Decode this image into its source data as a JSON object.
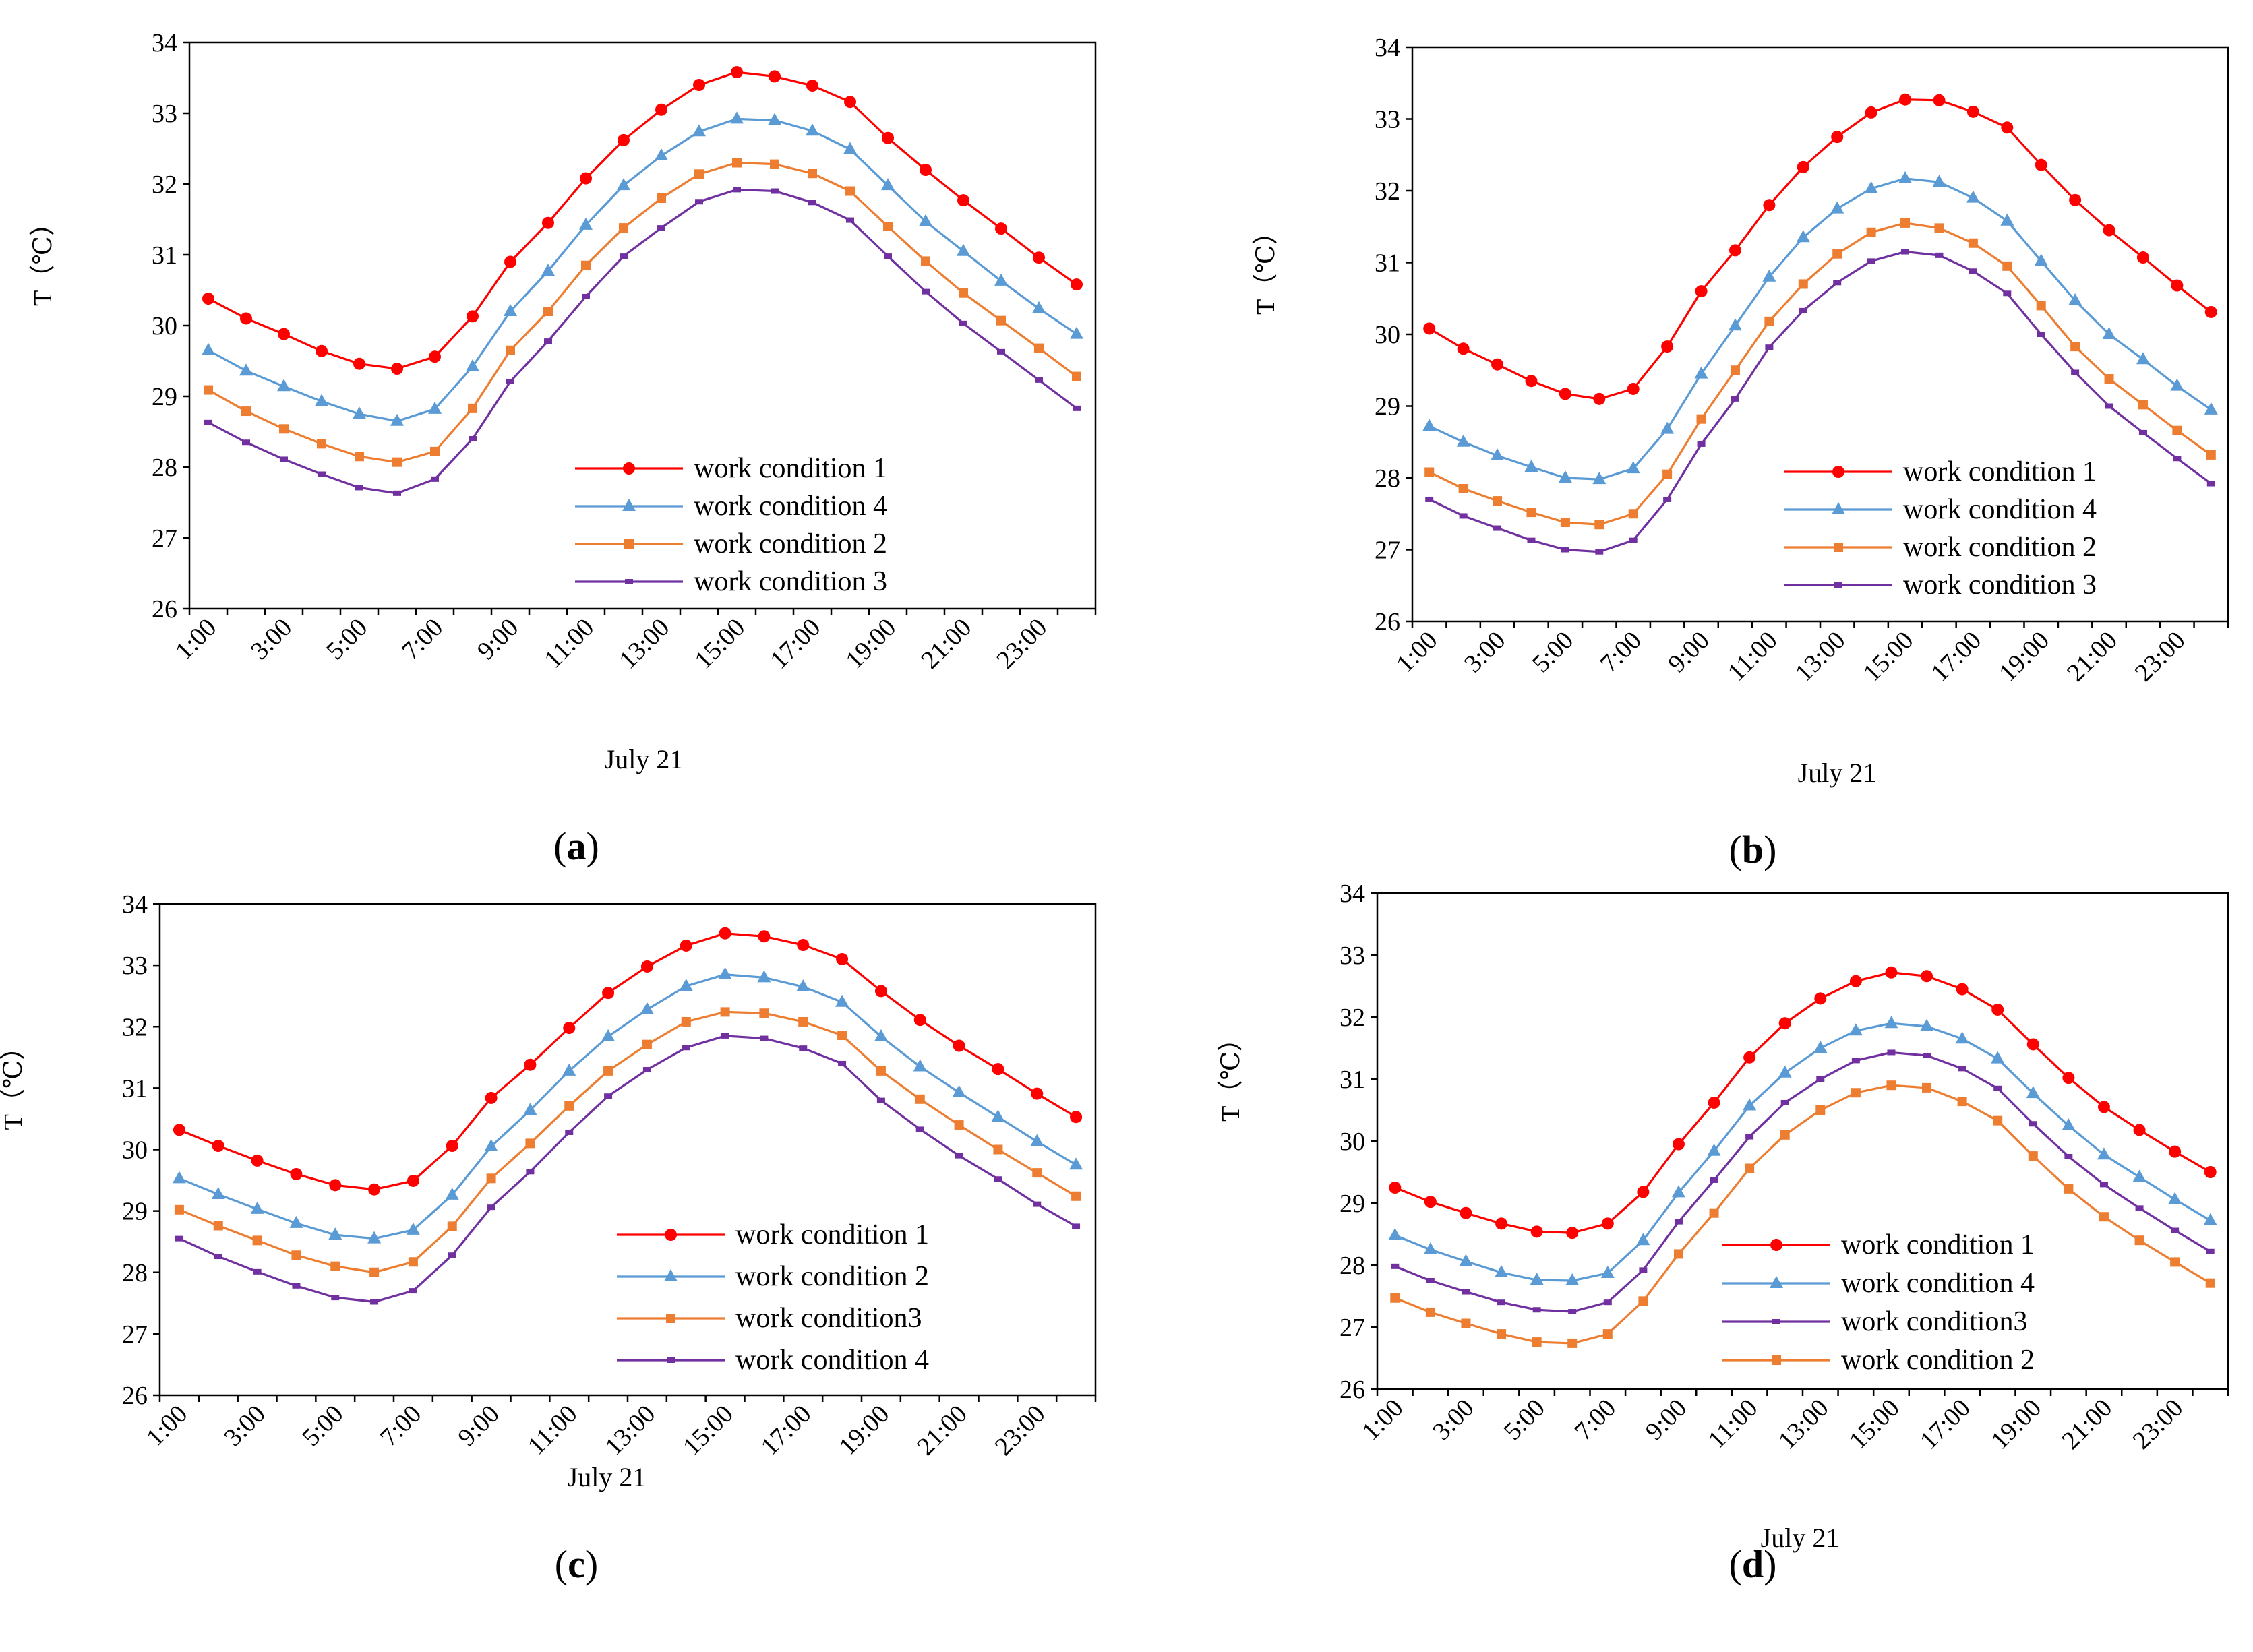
{
  "figure": {
    "panels": [
      "a",
      "b",
      "c",
      "d"
    ]
  },
  "chart_data": [
    {
      "panel": "a",
      "caption_letter": "a",
      "type": "line",
      "ylabel": "T（℃）",
      "xlabel": "July 21",
      "ylim": [
        26,
        34
      ],
      "yticks": [
        "26",
        "27",
        "28",
        "29",
        "30",
        "31",
        "32",
        "33",
        "34"
      ],
      "x": [
        "1:00",
        "2:00",
        "3:00",
        "4:00",
        "5:00",
        "6:00",
        "7:00",
        "8:00",
        "9:00",
        "10:00",
        "11:00",
        "12:00",
        "13:00",
        "14:00",
        "15:00",
        "16:00",
        "17:00",
        "18:00",
        "19:00",
        "20:00",
        "21:00",
        "22:00",
        "23:00",
        "24:00"
      ],
      "xtick_labels": [
        "1:00",
        "3:00",
        "5:00",
        "7:00",
        "9:00",
        "11:00",
        "13:00",
        "15:00",
        "17:00",
        "19:00",
        "21:00",
        "23:00"
      ],
      "legend_position": "center-right",
      "series": [
        {
          "name": "work condition 1",
          "color": "#ff0000",
          "marker": "circle",
          "values": [
            30.38,
            30.1,
            29.88,
            29.64,
            29.46,
            29.39,
            29.56,
            30.13,
            30.9,
            31.45,
            32.08,
            32.62,
            33.05,
            33.4,
            33.58,
            33.52,
            33.39,
            33.16,
            32.65,
            32.2,
            31.77,
            31.37,
            30.96,
            30.58
          ]
        },
        {
          "name": "work condition 4",
          "color": "#5b9bd5",
          "marker": "triangle",
          "values": [
            29.65,
            29.36,
            29.14,
            28.93,
            28.75,
            28.65,
            28.82,
            29.42,
            30.2,
            30.77,
            31.42,
            31.98,
            32.4,
            32.74,
            32.92,
            32.9,
            32.75,
            32.49,
            31.98,
            31.47,
            31.05,
            30.63,
            30.24,
            29.88
          ]
        },
        {
          "name": "work condition 2",
          "color": "#ed7d31",
          "marker": "square",
          "values": [
            29.09,
            28.79,
            28.54,
            28.33,
            28.15,
            28.07,
            28.22,
            28.83,
            29.65,
            30.2,
            30.85,
            31.38,
            31.8,
            32.14,
            32.3,
            32.28,
            32.15,
            31.9,
            31.4,
            30.91,
            30.46,
            30.07,
            29.68,
            29.28
          ]
        },
        {
          "name": "work condition 3",
          "color": "#7030a0",
          "marker": "dash",
          "values": [
            28.63,
            28.35,
            28.11,
            27.9,
            27.71,
            27.63,
            27.83,
            28.4,
            29.21,
            29.78,
            30.41,
            30.98,
            31.38,
            31.75,
            31.92,
            31.9,
            31.74,
            31.49,
            30.98,
            30.48,
            30.03,
            29.63,
            29.23,
            28.83
          ]
        }
      ]
    },
    {
      "panel": "b",
      "caption_letter": "b",
      "type": "line",
      "ylabel": "T（℃）",
      "xlabel": "July 21",
      "ylim": [
        26,
        34
      ],
      "yticks": [
        "26",
        "27",
        "28",
        "29",
        "30",
        "31",
        "32",
        "33",
        "34"
      ],
      "x": [
        "1:00",
        "2:00",
        "3:00",
        "4:00",
        "5:00",
        "6:00",
        "7:00",
        "8:00",
        "9:00",
        "10:00",
        "11:00",
        "12:00",
        "13:00",
        "14:00",
        "15:00",
        "16:00",
        "17:00",
        "18:00",
        "19:00",
        "20:00",
        "21:00",
        "22:00",
        "23:00",
        "24:00"
      ],
      "xtick_labels": [
        "1:00",
        "3:00",
        "5:00",
        "7:00",
        "9:00",
        "11:00",
        "13:00",
        "15:00",
        "17:00",
        "19:00",
        "21:00",
        "23:00"
      ],
      "legend_position": "center-right",
      "series": [
        {
          "name": "work condition 1",
          "color": "#ff0000",
          "marker": "circle",
          "values": [
            30.08,
            29.8,
            29.58,
            29.35,
            29.17,
            29.1,
            29.24,
            29.83,
            30.6,
            31.17,
            31.8,
            32.33,
            32.75,
            33.09,
            33.27,
            33.26,
            33.1,
            32.88,
            32.36,
            31.87,
            31.45,
            31.07,
            30.68,
            30.31
          ]
        },
        {
          "name": "work condition 4",
          "color": "#5b9bd5",
          "marker": "triangle",
          "values": [
            28.72,
            28.5,
            28.31,
            28.15,
            28.0,
            27.98,
            28.13,
            28.68,
            29.45,
            30.12,
            30.8,
            31.35,
            31.75,
            32.03,
            32.17,
            32.12,
            31.9,
            31.58,
            31.02,
            30.47,
            30.0,
            29.65,
            29.28,
            28.95
          ]
        },
        {
          "name": "work condition 2",
          "color": "#ed7d31",
          "marker": "square",
          "values": [
            28.08,
            27.85,
            27.68,
            27.52,
            27.38,
            27.35,
            27.5,
            28.05,
            28.82,
            29.5,
            30.18,
            30.7,
            31.12,
            31.42,
            31.55,
            31.48,
            31.27,
            30.95,
            30.4,
            29.83,
            29.38,
            29.02,
            28.66,
            28.32
          ]
        },
        {
          "name": "work condition 3",
          "color": "#7030a0",
          "marker": "dash",
          "values": [
            27.7,
            27.47,
            27.3,
            27.13,
            27.0,
            26.97,
            27.13,
            27.7,
            28.47,
            29.1,
            29.82,
            30.33,
            30.72,
            31.02,
            31.15,
            31.1,
            30.88,
            30.57,
            30.0,
            29.47,
            29.0,
            28.63,
            28.27,
            27.92
          ]
        }
      ]
    },
    {
      "panel": "c",
      "caption_letter": "c",
      "type": "line",
      "ylabel": "T（℃）",
      "xlabel": "July 21",
      "ylim": [
        26,
        34
      ],
      "yticks": [
        "26",
        "27",
        "28",
        "29",
        "30",
        "31",
        "32",
        "33",
        "34"
      ],
      "x": [
        "1:00",
        "2:00",
        "3:00",
        "4:00",
        "5:00",
        "6:00",
        "7:00",
        "8:00",
        "9:00",
        "10:00",
        "11:00",
        "12:00",
        "13:00",
        "14:00",
        "15:00",
        "16:00",
        "17:00",
        "18:00",
        "19:00",
        "20:00",
        "21:00",
        "22:00",
        "23:00",
        "24:00"
      ],
      "xtick_labels": [
        "1:00",
        "3:00",
        "5:00",
        "7:00",
        "9:00",
        "11:00",
        "13:00",
        "15:00",
        "17:00",
        "19:00",
        "21:00",
        "23:00"
      ],
      "legend_position": "center-right",
      "series": [
        {
          "name": "work condition 1",
          "color": "#ff0000",
          "marker": "circle",
          "values": [
            30.32,
            30.06,
            29.82,
            29.6,
            29.42,
            29.35,
            29.49,
            30.06,
            30.84,
            31.38,
            31.98,
            32.55,
            32.98,
            33.32,
            33.52,
            33.47,
            33.33,
            33.1,
            32.58,
            32.11,
            31.69,
            31.31,
            30.91,
            30.53
          ]
        },
        {
          "name": "work condition 2",
          "color": "#5b9bd5",
          "marker": "triangle",
          "values": [
            29.53,
            29.27,
            29.03,
            28.8,
            28.61,
            28.55,
            28.69,
            29.26,
            30.05,
            30.64,
            31.28,
            31.84,
            32.28,
            32.66,
            32.85,
            32.8,
            32.65,
            32.4,
            31.84,
            31.35,
            30.93,
            30.53,
            30.13,
            29.75
          ]
        },
        {
          "name": "work condition3",
          "color": "#ed7d31",
          "marker": "square",
          "values": [
            29.02,
            28.76,
            28.52,
            28.28,
            28.1,
            28.0,
            28.17,
            28.75,
            29.53,
            30.1,
            30.71,
            31.28,
            31.71,
            32.08,
            32.24,
            32.22,
            32.08,
            31.86,
            31.28,
            30.82,
            30.4,
            30.0,
            29.62,
            29.24
          ]
        },
        {
          "name": "work condition 4",
          "color": "#7030a0",
          "marker": "dash",
          "values": [
            28.55,
            28.26,
            28.01,
            27.78,
            27.59,
            27.52,
            27.7,
            28.28,
            29.06,
            29.64,
            30.28,
            30.87,
            31.3,
            31.66,
            31.85,
            31.81,
            31.65,
            31.4,
            30.8,
            30.33,
            29.9,
            29.52,
            29.11,
            28.75
          ]
        }
      ]
    },
    {
      "panel": "d",
      "caption_letter": "d",
      "type": "line",
      "ylabel": "T（℃）",
      "xlabel": "July 21",
      "ylim": [
        26,
        34
      ],
      "yticks": [
        "26",
        "27",
        "28",
        "29",
        "30",
        "31",
        "32",
        "33",
        "34"
      ],
      "x": [
        "1:00",
        "2:00",
        "3:00",
        "4:00",
        "5:00",
        "6:00",
        "7:00",
        "8:00",
        "9:00",
        "10:00",
        "11:00",
        "12:00",
        "13:00",
        "14:00",
        "15:00",
        "16:00",
        "17:00",
        "18:00",
        "19:00",
        "20:00",
        "21:00",
        "22:00",
        "23:00",
        "24:00"
      ],
      "xtick_labels": [
        "1:00",
        "3:00",
        "5:00",
        "7:00",
        "9:00",
        "11:00",
        "13:00",
        "15:00",
        "17:00",
        "19:00",
        "21:00",
        "23:00"
      ],
      "legend_position": "center-right",
      "series": [
        {
          "name": "work condition 1",
          "color": "#ff0000",
          "marker": "circle",
          "values": [
            29.25,
            29.02,
            28.84,
            28.67,
            28.54,
            28.52,
            28.67,
            29.18,
            29.95,
            30.62,
            31.35,
            31.9,
            32.3,
            32.58,
            32.72,
            32.66,
            32.45,
            32.12,
            31.56,
            31.02,
            30.55,
            30.18,
            29.83,
            29.5
          ]
        },
        {
          "name": "work condition 4",
          "color": "#5b9bd5",
          "marker": "triangle",
          "values": [
            28.48,
            28.25,
            28.06,
            27.88,
            27.76,
            27.75,
            27.87,
            28.4,
            29.17,
            29.84,
            30.57,
            31.1,
            31.5,
            31.78,
            31.9,
            31.85,
            31.65,
            31.33,
            30.77,
            30.25,
            29.78,
            29.42,
            29.06,
            28.72
          ]
        },
        {
          "name": "work condition3",
          "color": "#7030a0",
          "marker": "dash",
          "values": [
            27.98,
            27.75,
            27.57,
            27.4,
            27.28,
            27.25,
            27.4,
            27.92,
            28.7,
            29.37,
            30.07,
            30.62,
            31.0,
            31.3,
            31.43,
            31.38,
            31.17,
            30.85,
            30.28,
            29.75,
            29.3,
            28.92,
            28.56,
            28.22
          ]
        },
        {
          "name": "work condition 2",
          "color": "#ed7d31",
          "marker": "square",
          "values": [
            27.47,
            27.24,
            27.06,
            26.89,
            26.76,
            26.74,
            26.89,
            27.42,
            28.18,
            28.84,
            29.56,
            30.1,
            30.5,
            30.78,
            30.9,
            30.86,
            30.64,
            30.33,
            29.76,
            29.23,
            28.78,
            28.4,
            28.05,
            27.71
          ]
        }
      ]
    }
  ]
}
